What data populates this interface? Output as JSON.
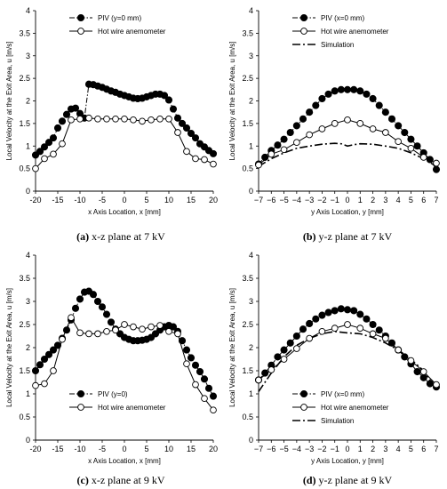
{
  "chart_data": [
    {
      "id": "a",
      "type": "line",
      "caption_label": "(a)",
      "caption_text": " x-z plane at 7 kV",
      "xlabel": "x Axis Location, x [mm]",
      "ylabel": "Local Velocity at the Exit Area, u [m/s]",
      "xlim": [
        -20,
        20
      ],
      "ylim": [
        0,
        4
      ],
      "xticks": [
        "-20",
        "-15",
        "-10",
        "-5",
        "0",
        "5",
        "10",
        "15",
        "20"
      ],
      "yticks": [
        "0",
        "0.5",
        "1",
        "1.5",
        "2",
        "2.5",
        "3",
        "3.5",
        "4"
      ],
      "grid": false,
      "legend_position": "top-left",
      "series": [
        {
          "name": "PIV (y=0 mm)",
          "style": "dash-dot",
          "marker": "filled-circle",
          "x": [
            -20,
            -19,
            -18,
            -17,
            -16,
            -15,
            -14,
            -13,
            -12,
            -11,
            -10,
            -9,
            -8,
            -7,
            -6,
            -5,
            -4,
            -3,
            -2,
            -1,
            0,
            1,
            2,
            3,
            4,
            5,
            6,
            7,
            8,
            9,
            10,
            11,
            12,
            13,
            14,
            15,
            16,
            17,
            18,
            19,
            20
          ],
          "values": [
            0.8,
            0.88,
            0.98,
            1.08,
            1.18,
            1.4,
            1.55,
            1.7,
            1.82,
            1.84,
            1.72,
            1.62,
            2.37,
            2.36,
            2.33,
            2.3,
            2.26,
            2.22,
            2.19,
            2.15,
            2.12,
            2.09,
            2.06,
            2.05,
            2.06,
            2.09,
            2.12,
            2.15,
            2.15,
            2.12,
            2.02,
            1.82,
            1.62,
            1.5,
            1.4,
            1.28,
            1.18,
            1.05,
            0.98,
            0.9,
            0.83
          ]
        },
        {
          "name": "Hot wire anemometer",
          "style": "solid",
          "marker": "open-circle",
          "x": [
            -20,
            -18,
            -16,
            -14,
            -12,
            -10,
            -8,
            -6,
            -4,
            -2,
            0,
            2,
            4,
            6,
            8,
            10,
            12,
            14,
            16,
            18,
            20
          ],
          "values": [
            0.5,
            0.72,
            0.82,
            1.05,
            1.58,
            1.6,
            1.62,
            1.6,
            1.6,
            1.6,
            1.6,
            1.58,
            1.55,
            1.58,
            1.6,
            1.6,
            1.3,
            0.88,
            0.72,
            0.7,
            0.6
          ]
        }
      ]
    },
    {
      "id": "b",
      "type": "line",
      "caption_label": "(b)",
      "caption_text": " y-z plane at 7 kV",
      "xlabel": "y Axis Location, y [mm]",
      "ylabel": "Local Velocity at the Exit Area, u [m/s]",
      "xlim": [
        -7,
        7
      ],
      "ylim": [
        0,
        4
      ],
      "xticks": [
        "−7",
        "−6",
        "−5",
        "−4",
        "−3",
        "−2",
        "−1",
        "0",
        "1",
        "2",
        "3",
        "4",
        "5",
        "6",
        "7"
      ],
      "yticks": [
        "0",
        "0.5",
        "1",
        "1.5",
        "2",
        "2.5",
        "3",
        "3.5",
        "4"
      ],
      "grid": false,
      "legend_position": "top-left",
      "series": [
        {
          "name": "PIV (x=0 mm)",
          "style": "dash-dot",
          "marker": "filled-circle",
          "x": [
            -7,
            -6.5,
            -6,
            -5.5,
            -5,
            -4.5,
            -4,
            -3.5,
            -3,
            -2.5,
            -2,
            -1.5,
            -1,
            -0.5,
            0,
            0.5,
            1,
            1.5,
            2,
            2.5,
            3,
            3.5,
            4,
            4.5,
            5,
            5.5,
            6,
            6.5,
            7
          ],
          "values": [
            0.6,
            0.75,
            0.9,
            1.02,
            1.15,
            1.3,
            1.45,
            1.6,
            1.75,
            1.9,
            2.05,
            2.15,
            2.22,
            2.25,
            2.25,
            2.25,
            2.22,
            2.15,
            2.05,
            1.9,
            1.75,
            1.6,
            1.45,
            1.3,
            1.15,
            1.0,
            0.85,
            0.7,
            0.48
          ]
        },
        {
          "name": "Hot wire anemometer",
          "style": "solid",
          "marker": "open-circle",
          "x": [
            -7,
            -6,
            -5,
            -4,
            -3,
            -2,
            -1,
            0,
            1,
            2,
            3,
            4,
            5,
            6,
            7
          ],
          "values": [
            0.58,
            0.82,
            0.92,
            1.08,
            1.25,
            1.38,
            1.5,
            1.58,
            1.5,
            1.38,
            1.3,
            1.1,
            0.95,
            0.75,
            0.62
          ]
        },
        {
          "name": "Simulation",
          "style": "long-dash-dot",
          "marker": "none",
          "x": [
            -7,
            -6,
            -5,
            -4,
            -3,
            -2,
            -1,
            -0.5,
            0,
            0.5,
            1,
            2,
            3,
            4,
            5,
            6,
            7
          ],
          "values": [
            0.55,
            0.72,
            0.85,
            0.95,
            1.0,
            1.04,
            1.06,
            1.05,
            1.0,
            1.03,
            1.05,
            1.04,
            1.0,
            0.95,
            0.85,
            0.72,
            0.55
          ]
        }
      ]
    },
    {
      "id": "c",
      "type": "line",
      "caption_label": "(c)",
      "caption_text": " x-z plane at 9 kV",
      "xlabel": "x Axis Location, x [mm]",
      "ylabel": "Local Velocity at the Exit Area, u [m/s]",
      "xlim": [
        -20,
        20
      ],
      "ylim": [
        0,
        4
      ],
      "xticks": [
        "-20",
        "-15",
        "-10",
        "-5",
        "0",
        "5",
        "10",
        "15",
        "20"
      ],
      "yticks": [
        "0",
        "0.5",
        "1",
        "1.5",
        "2",
        "2.5",
        "3",
        "3.5",
        "4"
      ],
      "grid": false,
      "legend_position": "bottom-left",
      "series": [
        {
          "name": "PIV (y=0)",
          "style": "dash-dot",
          "marker": "filled-circle",
          "x": [
            -20,
            -19,
            -18,
            -17,
            -16,
            -15,
            -14,
            -13,
            -12,
            -11,
            -10,
            -9,
            -8,
            -7,
            -6,
            -5,
            -4,
            -3,
            -2,
            -1,
            0,
            1,
            2,
            3,
            4,
            5,
            6,
            7,
            8,
            9,
            10,
            11,
            12,
            13,
            14,
            15,
            16,
            17,
            18,
            19,
            20
          ],
          "values": [
            1.5,
            1.63,
            1.75,
            1.85,
            1.95,
            2.05,
            2.2,
            2.38,
            2.6,
            2.85,
            3.05,
            3.2,
            3.22,
            3.15,
            3.0,
            2.88,
            2.72,
            2.55,
            2.4,
            2.3,
            2.22,
            2.18,
            2.15,
            2.15,
            2.16,
            2.18,
            2.22,
            2.3,
            2.38,
            2.45,
            2.48,
            2.45,
            2.35,
            2.15,
            1.95,
            1.78,
            1.62,
            1.48,
            1.32,
            1.12,
            0.95
          ]
        },
        {
          "name": "Hot wire anemometer",
          "style": "solid",
          "marker": "open-circle",
          "x": [
            -20,
            -18,
            -16,
            -14,
            -12,
            -10,
            -8,
            -6,
            -4,
            -2,
            0,
            2,
            4,
            6,
            8,
            10,
            12,
            14,
            16,
            18,
            20
          ],
          "values": [
            1.18,
            1.22,
            1.5,
            2.18,
            2.65,
            2.32,
            2.3,
            2.3,
            2.35,
            2.38,
            2.5,
            2.45,
            2.4,
            2.45,
            2.48,
            2.35,
            2.3,
            1.65,
            1.2,
            0.9,
            0.65
          ]
        }
      ]
    },
    {
      "id": "d",
      "type": "line",
      "caption_label": "(d)",
      "caption_text": " y-z plane at 9 kV",
      "xlabel": "y Axis Location, y [mm]",
      "ylabel": "Local Velocity at the Exit Area, u [m/s]",
      "xlim": [
        -7,
        7
      ],
      "ylim": [
        0,
        4
      ],
      "xticks": [
        "−7",
        "−6",
        "−5",
        "−4",
        "−3",
        "−2",
        "−1",
        "0",
        "1",
        "2",
        "3",
        "4",
        "5",
        "6",
        "7"
      ],
      "yticks": [
        "0",
        "0.5",
        "1",
        "1.5",
        "2",
        "2.5",
        "3",
        "3.5",
        "4"
      ],
      "grid": false,
      "legend_position": "bottom-left",
      "series": [
        {
          "name": "PIV (x=0 mm)",
          "style": "dash-dot",
          "marker": "filled-circle",
          "x": [
            -7,
            -6.5,
            -6,
            -5.5,
            -5,
            -4.5,
            -4,
            -3.5,
            -3,
            -2.5,
            -2,
            -1.5,
            -1,
            -0.5,
            0,
            0.5,
            1,
            1.5,
            2,
            2.5,
            3,
            3.5,
            4,
            4.5,
            5,
            5.5,
            6,
            6.5,
            7
          ],
          "values": [
            1.3,
            1.45,
            1.62,
            1.8,
            1.95,
            2.1,
            2.25,
            2.4,
            2.52,
            2.62,
            2.7,
            2.76,
            2.8,
            2.84,
            2.82,
            2.8,
            2.72,
            2.62,
            2.5,
            2.38,
            2.25,
            2.1,
            1.95,
            1.8,
            1.65,
            1.48,
            1.35,
            1.22,
            1.15
          ]
        },
        {
          "name": "Hot wire anemometer",
          "style": "solid",
          "marker": "open-circle",
          "x": [
            -7,
            -6,
            -5,
            -4,
            -3,
            -2,
            -1,
            0,
            1,
            2,
            3,
            4,
            5,
            6,
            7
          ],
          "values": [
            1.3,
            1.52,
            1.75,
            1.98,
            2.2,
            2.35,
            2.42,
            2.5,
            2.42,
            2.3,
            2.2,
            1.95,
            1.72,
            1.48,
            1.2
          ]
        },
        {
          "name": "Simulation",
          "style": "long-dash-dot",
          "marker": "none",
          "x": [
            -7,
            -6,
            -5,
            -4,
            -3,
            -2,
            -1,
            0,
            1,
            2,
            3,
            4,
            5,
            6,
            7
          ],
          "values": [
            1.05,
            1.45,
            1.8,
            2.05,
            2.2,
            2.3,
            2.35,
            2.32,
            2.3,
            2.22,
            2.1,
            1.95,
            1.75,
            1.5,
            1.1
          ]
        }
      ]
    }
  ]
}
